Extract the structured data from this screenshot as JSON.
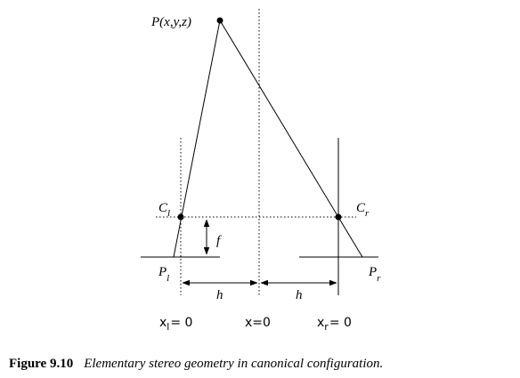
{
  "diagram": {
    "point_label": {
      "text": "P(x,y,z)"
    },
    "left_center": {
      "text": "C",
      "sub": "l"
    },
    "right_center": {
      "text": "C",
      "sub": "r"
    },
    "focal_label": "f",
    "left_plane": {
      "text": "P",
      "sub": "l"
    },
    "right_plane": {
      "text": "P",
      "sub": "r"
    },
    "baseline_left": "h",
    "baseline_right": "h",
    "axis_left": {
      "text": "x",
      "sub": "l",
      "rest": "= 0"
    },
    "axis_center": "x=0",
    "axis_right": {
      "text": "x",
      "sub": "r",
      "rest": "= 0"
    }
  },
  "caption": {
    "label": "Figure 9.10",
    "text": "Elementary stereo geometry in canonical configuration."
  }
}
